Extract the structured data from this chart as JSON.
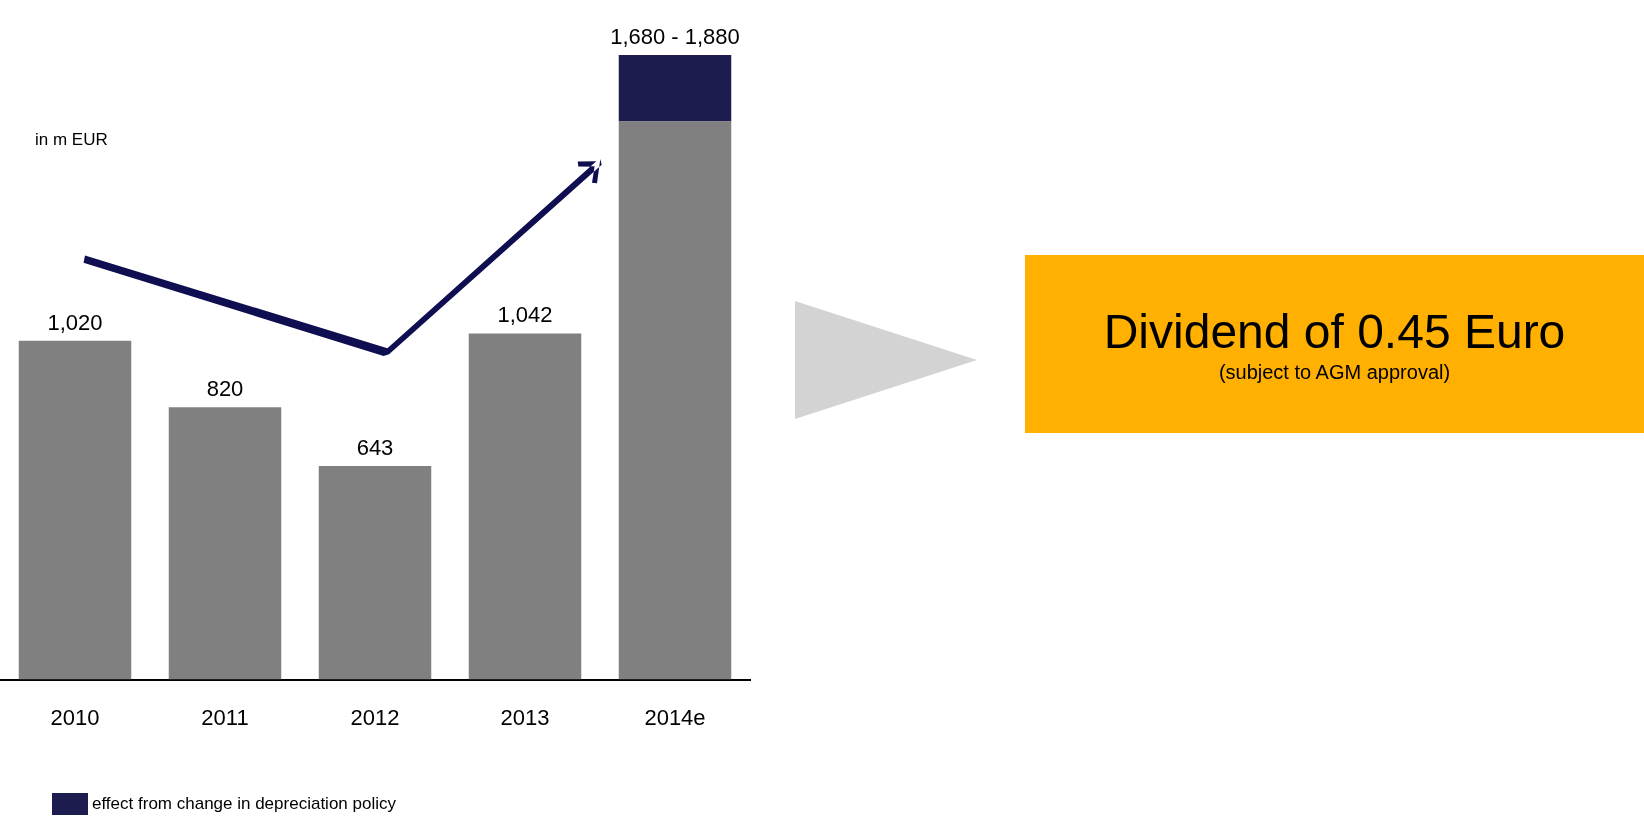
{
  "chart_data": {
    "type": "bar",
    "stacked": true,
    "ylabel": "in m EUR",
    "categories": [
      "2010",
      "2011",
      "2012",
      "2013",
      "2014e"
    ],
    "series": [
      {
        "color": "#808080",
        "values": [
          1020,
          820,
          643,
          1042,
          1680
        ],
        "value_labels": [
          "1,020",
          "820",
          "643",
          "1,042",
          null
        ]
      },
      {
        "name": "effect from change in depreciation policy",
        "color": "#1c1c4e",
        "values": [
          null,
          null,
          null,
          null,
          200
        ]
      }
    ],
    "totals": [
      null,
      null,
      null,
      null,
      "1,680 - 1,880"
    ],
    "legend": "bottom left",
    "annotations": [
      "Dividend of 0.45 Euro",
      "(subject to AGM approval)"
    ]
  }
}
